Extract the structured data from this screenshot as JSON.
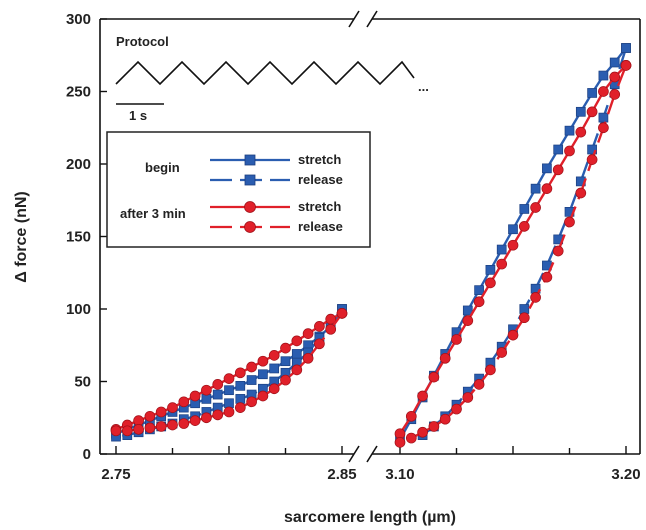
{
  "chart_data": {
    "type": "line",
    "xlabel": "sarcomere length (µm)",
    "ylabel": "Δ force (nN)",
    "ylim": [
      0,
      300
    ],
    "yticks": [
      0,
      50,
      100,
      150,
      200,
      250,
      300
    ],
    "x_axis_break": true,
    "x_segments": [
      {
        "xlim": [
          2.75,
          2.85
        ],
        "tick_labels": [
          "2.75",
          "2.85"
        ]
      },
      {
        "xlim": [
          3.1,
          3.2
        ],
        "tick_labels": [
          "3.10",
          "3.20"
        ]
      }
    ],
    "inset": {
      "title": "Protocol",
      "waveform": "triangle",
      "ellipsis": "...",
      "scale_bar_label": "1 s"
    },
    "legend": {
      "groups": [
        {
          "label": "begin",
          "color": "#2a5db0",
          "marker": "square",
          "entries": [
            {
              "label": "stretch",
              "dash": false
            },
            {
              "label": "release",
              "dash": true
            }
          ]
        },
        {
          "label": "after 3 min",
          "color": "#e0202a",
          "marker": "circle",
          "entries": [
            {
              "label": "stretch",
              "dash": false
            },
            {
              "label": "release",
              "dash": true
            }
          ]
        }
      ]
    },
    "series": [
      {
        "name": "begin stretch",
        "segment": 0,
        "color": "#2a5db0",
        "marker": "square",
        "dash": false,
        "x": [
          2.75,
          2.755,
          2.76,
          2.765,
          2.77,
          2.775,
          2.78,
          2.785,
          2.79,
          2.795,
          2.8,
          2.805,
          2.81,
          2.815,
          2.82,
          2.825,
          2.83,
          2.835,
          2.84,
          2.845,
          2.85
        ],
        "y": [
          14,
          17,
          20,
          23,
          26,
          29,
          32,
          35,
          38,
          41,
          44,
          47,
          51,
          55,
          59,
          64,
          69,
          75,
          81,
          88,
          100
        ]
      },
      {
        "name": "begin release",
        "segment": 0,
        "color": "#2a5db0",
        "marker": "square",
        "dash": true,
        "x": [
          2.85,
          2.845,
          2.84,
          2.835,
          2.83,
          2.825,
          2.82,
          2.815,
          2.81,
          2.805,
          2.8,
          2.795,
          2.79,
          2.785,
          2.78,
          2.775,
          2.77,
          2.765,
          2.76,
          2.755,
          2.75
        ],
        "y": [
          100,
          90,
          80,
          70,
          63,
          56,
          50,
          45,
          41,
          38,
          35,
          32,
          29,
          26,
          24,
          21,
          19,
          17,
          15,
          13,
          12
        ]
      },
      {
        "name": "after 3 min stretch",
        "segment": 0,
        "color": "#e0202a",
        "marker": "circle",
        "dash": false,
        "x": [
          2.75,
          2.755,
          2.76,
          2.765,
          2.77,
          2.775,
          2.78,
          2.785,
          2.79,
          2.795,
          2.8,
          2.805,
          2.81,
          2.815,
          2.82,
          2.825,
          2.83,
          2.835,
          2.84,
          2.845,
          2.85
        ],
        "y": [
          17,
          20,
          23,
          26,
          29,
          32,
          36,
          40,
          44,
          48,
          52,
          56,
          60,
          64,
          68,
          73,
          78,
          83,
          88,
          93,
          97
        ]
      },
      {
        "name": "after 3 min release",
        "segment": 0,
        "color": "#e0202a",
        "marker": "circle",
        "dash": true,
        "x": [
          2.85,
          2.845,
          2.84,
          2.835,
          2.83,
          2.825,
          2.82,
          2.815,
          2.81,
          2.805,
          2.8,
          2.795,
          2.79,
          2.785,
          2.78,
          2.775,
          2.77,
          2.765,
          2.76,
          2.755,
          2.75
        ],
        "y": [
          97,
          86,
          76,
          66,
          58,
          51,
          45,
          40,
          36,
          32,
          29,
          27,
          25,
          23,
          21,
          20,
          19,
          18,
          17,
          16,
          16
        ]
      },
      {
        "name": "begin stretch",
        "segment": 1,
        "color": "#2a5db0",
        "marker": "square",
        "dash": false,
        "x": [
          3.1,
          3.105,
          3.11,
          3.115,
          3.12,
          3.125,
          3.13,
          3.135,
          3.14,
          3.145,
          3.15,
          3.155,
          3.16,
          3.165,
          3.17,
          3.175,
          3.18,
          3.185,
          3.19,
          3.195,
          3.2
        ],
        "y": [
          10,
          24,
          39,
          54,
          69,
          84,
          99,
          113,
          127,
          141,
          155,
          169,
          183,
          197,
          210,
          223,
          236,
          249,
          261,
          270,
          280
        ]
      },
      {
        "name": "begin release",
        "segment": 1,
        "color": "#2a5db0",
        "marker": "square",
        "dash": true,
        "x": [
          3.2,
          3.195,
          3.19,
          3.185,
          3.18,
          3.175,
          3.17,
          3.165,
          3.16,
          3.155,
          3.15,
          3.145,
          3.14,
          3.135,
          3.13,
          3.125,
          3.12,
          3.115,
          3.11
        ],
        "y": [
          280,
          255,
          232,
          210,
          188,
          167,
          148,
          130,
          114,
          100,
          86,
          74,
          63,
          52,
          43,
          34,
          26,
          19,
          13
        ]
      },
      {
        "name": "after 3 min stretch",
        "segment": 1,
        "color": "#e0202a",
        "marker": "circle",
        "dash": false,
        "x": [
          3.1,
          3.105,
          3.11,
          3.115,
          3.12,
          3.125,
          3.13,
          3.135,
          3.14,
          3.145,
          3.15,
          3.155,
          3.16,
          3.165,
          3.17,
          3.175,
          3.18,
          3.185,
          3.19,
          3.195,
          3.2
        ],
        "y": [
          14,
          26,
          40,
          53,
          66,
          79,
          92,
          105,
          118,
          131,
          144,
          157,
          170,
          183,
          196,
          209,
          222,
          236,
          250,
          260,
          268
        ]
      },
      {
        "name": "after 3 min release",
        "segment": 1,
        "color": "#e0202a",
        "marker": "circle",
        "dash": true,
        "x": [
          3.2,
          3.195,
          3.19,
          3.185,
          3.18,
          3.175,
          3.17,
          3.165,
          3.16,
          3.155,
          3.15,
          3.145,
          3.14,
          3.135,
          3.13,
          3.125,
          3.12,
          3.115,
          3.11,
          3.105,
          3.1
        ],
        "y": [
          268,
          248,
          225,
          203,
          180,
          160,
          140,
          122,
          108,
          94,
          82,
          70,
          58,
          48,
          39,
          31,
          24,
          19,
          15,
          11,
          8
        ]
      }
    ]
  }
}
